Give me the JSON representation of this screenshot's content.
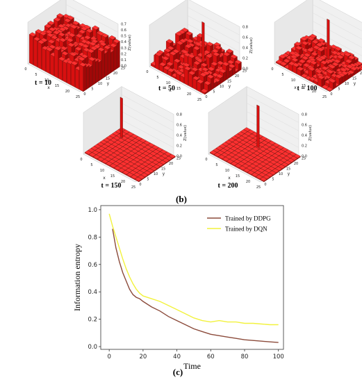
{
  "panel_b": {
    "label": "(b)",
    "plots": [
      {
        "caption": "t = 10",
        "axis_x": "x",
        "axis_y": "y",
        "axis_z": "Z(value)",
        "x_ticks": [
          "0",
          "5",
          "10",
          "15",
          "20",
          "25"
        ],
        "y_ticks": [
          "0",
          "5",
          "10",
          "15",
          "20",
          "25"
        ],
        "z_ticks": [
          "0.0",
          "0.1",
          "0.2",
          "0.3",
          "0.4",
          "0.5",
          "0.6",
          "0.7"
        ]
      },
      {
        "caption": "t = 50",
        "axis_x": "x",
        "axis_y": "y",
        "axis_z": "Z(value)",
        "x_ticks": [
          "0",
          "5",
          "10",
          "15",
          "20",
          "25"
        ],
        "y_ticks": [
          "0",
          "5",
          "10",
          "15",
          "20",
          "25"
        ],
        "z_ticks": [
          "0.0",
          "0.2",
          "0.4",
          "0.6",
          "0.8"
        ]
      },
      {
        "caption": "t = 100",
        "axis_x": "x",
        "axis_y": "y",
        "axis_z": "Z(value)",
        "x_ticks": [
          "0",
          "5",
          "10",
          "15",
          "20",
          "25"
        ],
        "y_ticks": [
          "0",
          "5",
          "10",
          "15",
          "20",
          "25"
        ],
        "z_ticks": [
          "0.0",
          "0.2",
          "0.4",
          "0.6",
          "0.8"
        ]
      },
      {
        "caption": "t = 150",
        "axis_x": "x",
        "axis_y": "y",
        "axis_z": "Z(value)",
        "x_ticks": [
          "0",
          "5",
          "10",
          "15",
          "20",
          "25"
        ],
        "y_ticks": [
          "0",
          "5",
          "10",
          "15",
          "20",
          "25"
        ],
        "z_ticks": [
          "0.0",
          "0.2",
          "0.4",
          "0.6",
          "0.8"
        ]
      },
      {
        "caption": "t = 200",
        "axis_x": "x",
        "axis_y": "y",
        "axis_z": "Z(value)",
        "x_ticks": [
          "0",
          "5",
          "10",
          "15",
          "20",
          "25"
        ],
        "y_ticks": [
          "0",
          "5",
          "10",
          "15",
          "20",
          "25"
        ],
        "z_ticks": [
          "0.0",
          "0.2",
          "0.4",
          "0.6",
          "0.8"
        ]
      }
    ]
  },
  "panel_c": {
    "label": "(c)"
  },
  "colors": {
    "ddpg": "#8b4a3a",
    "dqn": "#f2f23c",
    "bar": "#d81010",
    "bar_dark": "#5a1a10"
  },
  "chart_data": {
    "type": "line",
    "xlabel": "Time",
    "ylabel": "Information entropy",
    "xlim": [
      -5,
      103
    ],
    "ylim": [
      -0.02,
      1.03
    ],
    "x_ticks": [
      0,
      20,
      40,
      60,
      80,
      100
    ],
    "y_ticks": [
      0.0,
      0.2,
      0.4,
      0.6,
      0.8,
      1.0
    ],
    "x_tick_labels": [
      "0",
      "20",
      "40",
      "60",
      "80",
      "100"
    ],
    "y_tick_labels": [
      "0.0",
      "0.2",
      "0.4",
      "0.6",
      "0.8",
      "1.0"
    ],
    "grid": false,
    "legend": "top-right",
    "series": [
      {
        "name": "Trained by DDPG",
        "color": "#8b4a3a",
        "x": [
          2,
          4,
          6,
          8,
          10,
          12,
          14,
          16,
          18,
          20,
          25,
          30,
          35,
          40,
          45,
          50,
          55,
          60,
          65,
          70,
          75,
          80,
          85,
          90,
          95,
          100
        ],
        "y": [
          0.86,
          0.72,
          0.62,
          0.54,
          0.48,
          0.42,
          0.38,
          0.36,
          0.35,
          0.33,
          0.29,
          0.26,
          0.22,
          0.19,
          0.16,
          0.13,
          0.11,
          0.09,
          0.08,
          0.07,
          0.06,
          0.05,
          0.045,
          0.04,
          0.035,
          0.03
        ]
      },
      {
        "name": "Trained by DQN",
        "color": "#f2f23c",
        "x": [
          0,
          2,
          4,
          6,
          8,
          10,
          12,
          14,
          16,
          18,
          20,
          25,
          30,
          35,
          40,
          45,
          50,
          55,
          60,
          65,
          70,
          75,
          80,
          85,
          90,
          95,
          100
        ],
        "y": [
          0.97,
          0.88,
          0.8,
          0.72,
          0.64,
          0.57,
          0.51,
          0.46,
          0.42,
          0.39,
          0.37,
          0.35,
          0.33,
          0.3,
          0.27,
          0.24,
          0.21,
          0.19,
          0.18,
          0.19,
          0.18,
          0.18,
          0.17,
          0.17,
          0.165,
          0.16,
          0.16
        ]
      }
    ]
  }
}
